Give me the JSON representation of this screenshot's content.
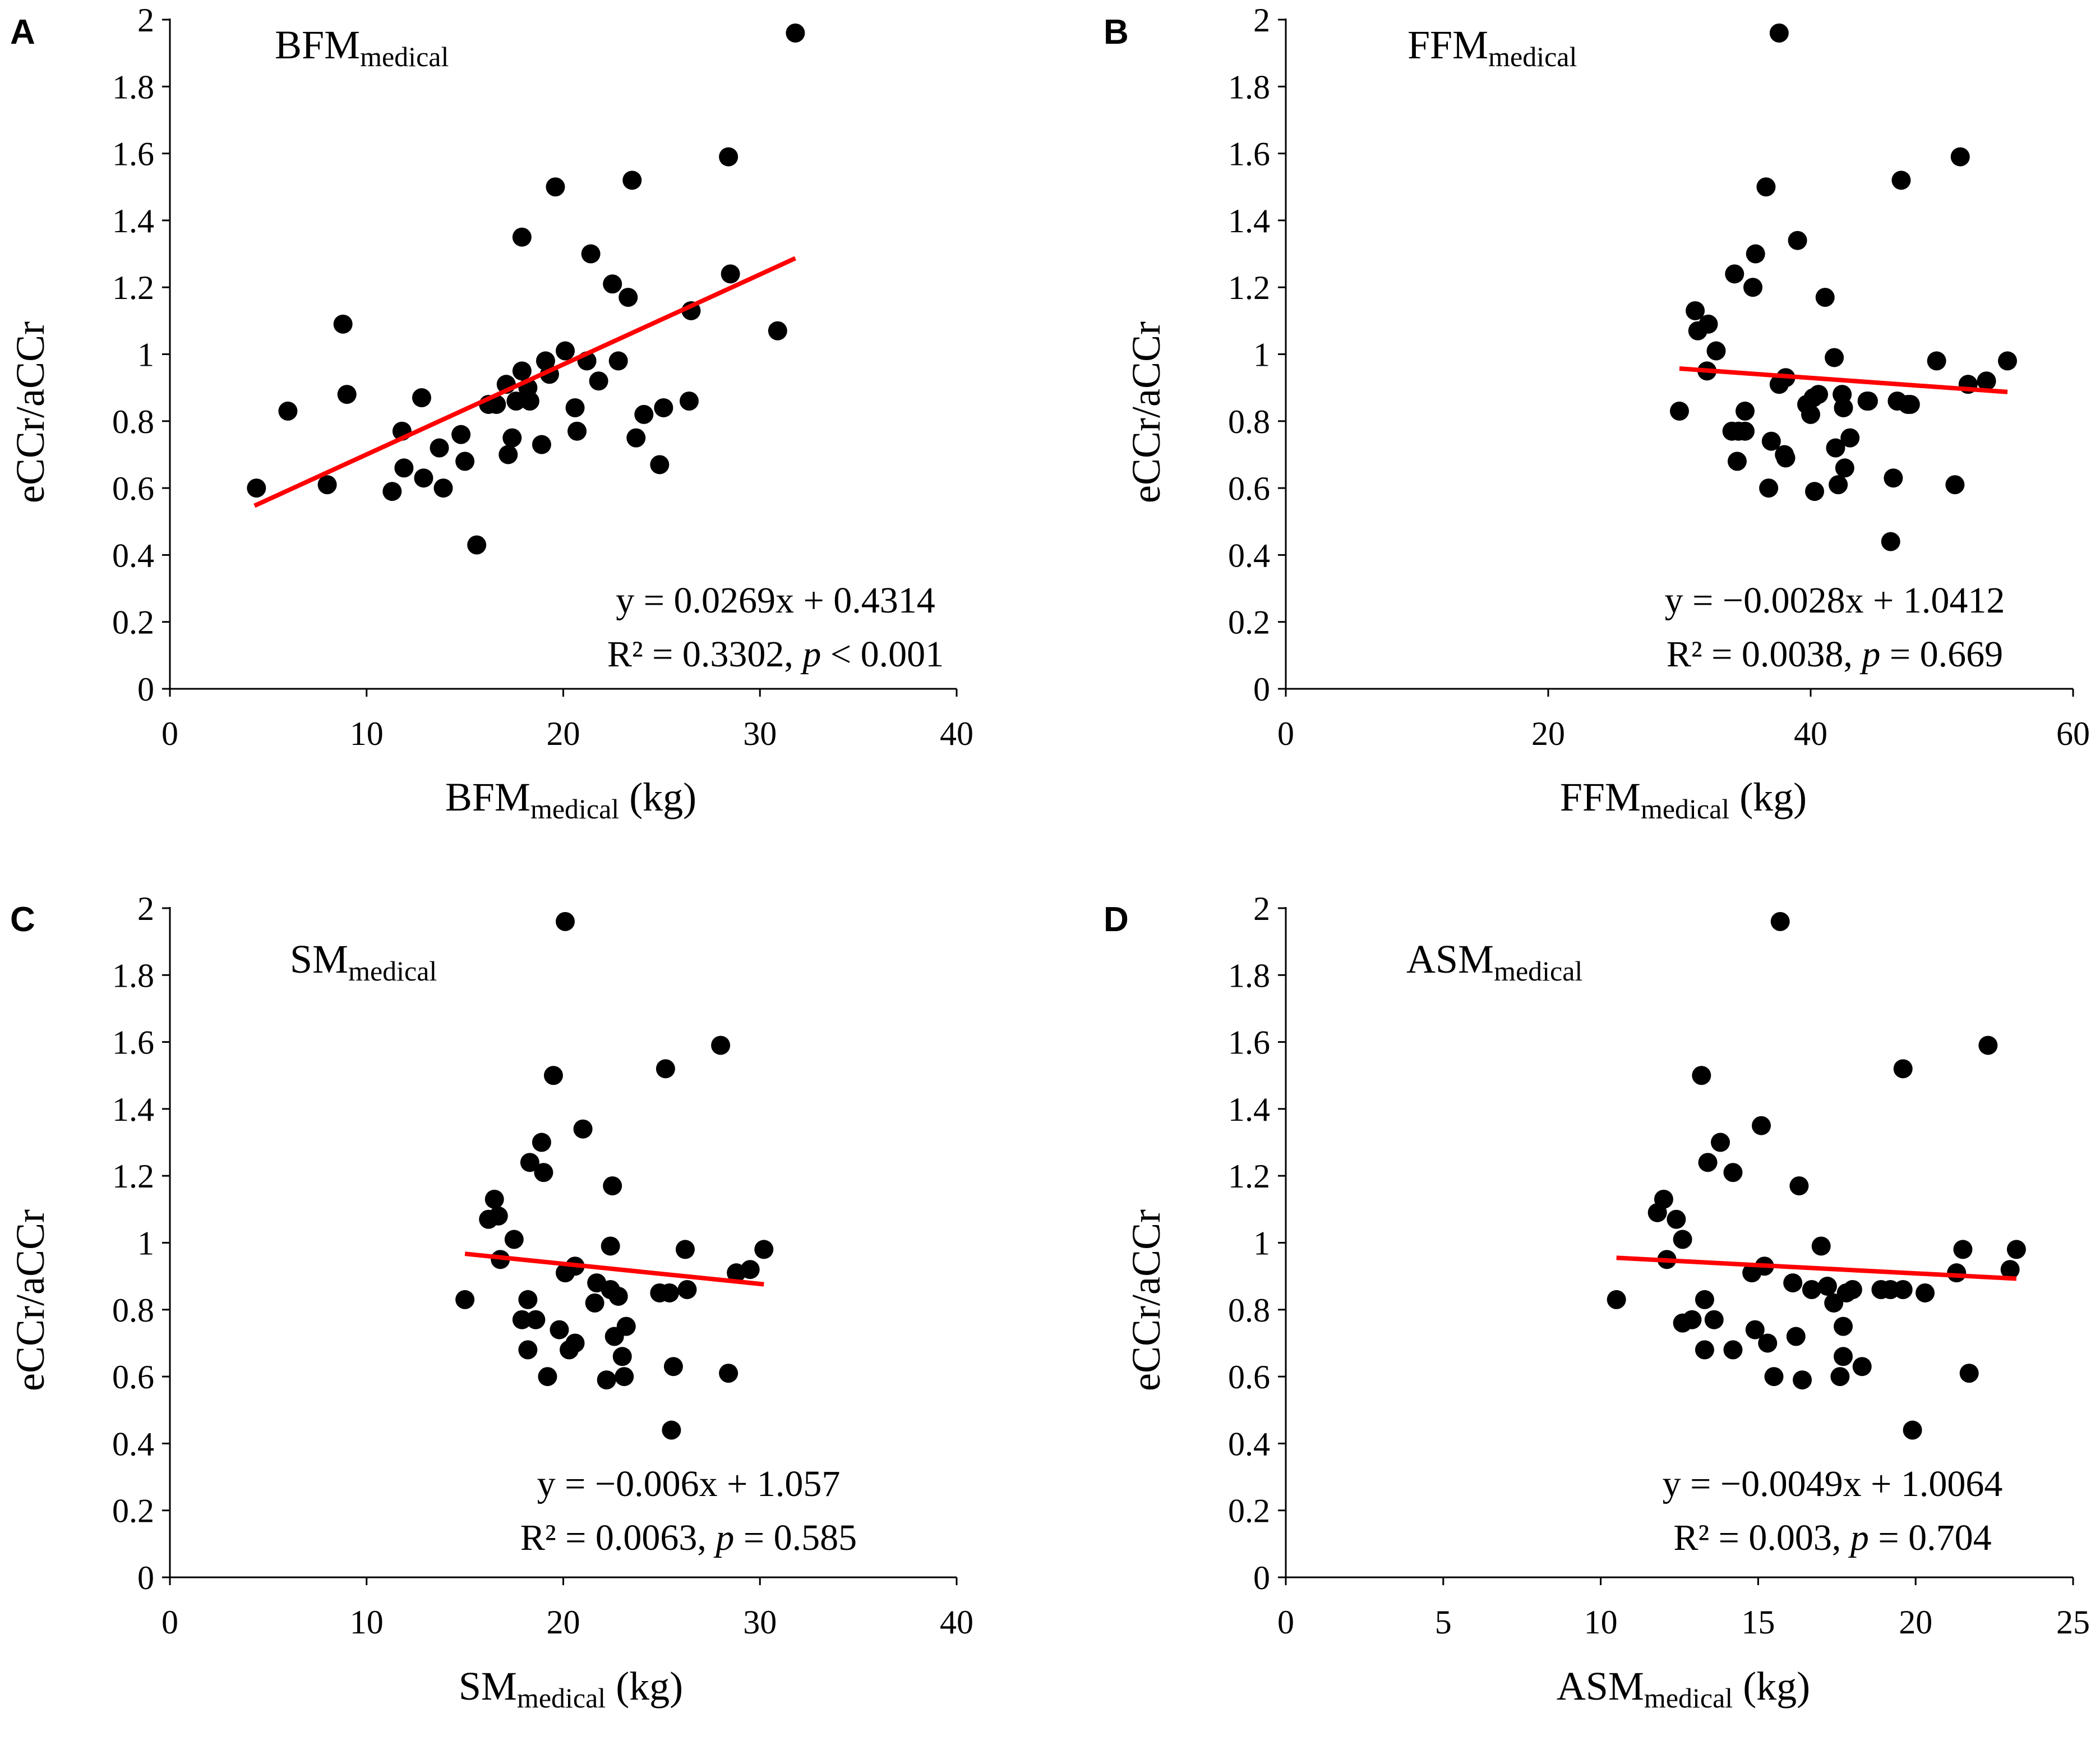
{
  "colors": {
    "points": "#000000",
    "trendline": "#ff0000",
    "axes": "#000000",
    "background": "#ffffff"
  },
  "chart_data": [
    {
      "type": "scatter",
      "panel": "A",
      "inset_title": {
        "main": "BFM",
        "sub": "medical"
      },
      "xlabel": {
        "main": "BFM",
        "sub": "medical",
        "unit": " (kg)"
      },
      "ylabel": "eCCr/aCCr",
      "xlim": [
        0,
        40
      ],
      "ylim": [
        0,
        2
      ],
      "x_ticks": [
        "0",
        "10",
        "20",
        "30",
        "40"
      ],
      "y_ticks": [
        "0",
        "0.2",
        "0.4",
        "0.6",
        "0.8",
        "1",
        "1.2",
        "1.4",
        "1.6",
        "1.8",
        "2"
      ],
      "equation": "y = 0.0269x + 0.4314",
      "stats": {
        "r2": "R² = 0.3302, ",
        "p_symbol": "p",
        "p_rest": " < 0.001"
      },
      "trendline": {
        "slope": 0.0269,
        "intercept": 0.4314,
        "x_range": [
          4.3,
          31.8
        ]
      },
      "points": [
        [
          4.4,
          0.6
        ],
        [
          6,
          0.83
        ],
        [
          8,
          0.61
        ],
        [
          8.8,
          1.09
        ],
        [
          9,
          0.88
        ],
        [
          11.3,
          0.59
        ],
        [
          11.8,
          0.77
        ],
        [
          11.9,
          0.66
        ],
        [
          12.8,
          0.87
        ],
        [
          12.9,
          0.63
        ],
        [
          13.7,
          0.72
        ],
        [
          13.9,
          0.6
        ],
        [
          14.8,
          0.76
        ],
        [
          15,
          0.68
        ],
        [
          15.6,
          0.43
        ],
        [
          16.2,
          0.85
        ],
        [
          16.6,
          0.85
        ],
        [
          17.1,
          0.91
        ],
        [
          17.2,
          0.7
        ],
        [
          17.4,
          0.75
        ],
        [
          17.6,
          0.86
        ],
        [
          17.9,
          1.35
        ],
        [
          17.9,
          0.95
        ],
        [
          18.2,
          0.9
        ],
        [
          18.3,
          0.86
        ],
        [
          18.9,
          0.73
        ],
        [
          19.1,
          0.98
        ],
        [
          19.3,
          0.94
        ],
        [
          19.6,
          1.5
        ],
        [
          20.1,
          1.01
        ],
        [
          20.6,
          0.84
        ],
        [
          20.7,
          0.77
        ],
        [
          21.2,
          0.98
        ],
        [
          21.4,
          1.3
        ],
        [
          21.8,
          0.92
        ],
        [
          22.5,
          1.21
        ],
        [
          22.8,
          0.98
        ],
        [
          23.3,
          1.17
        ],
        [
          23.5,
          1.52
        ],
        [
          23.7,
          0.75
        ],
        [
          24.1,
          0.82
        ],
        [
          24.9,
          0.67
        ],
        [
          25.1,
          0.84
        ],
        [
          26.4,
          0.86
        ],
        [
          26.5,
          1.13
        ],
        [
          28.4,
          1.59
        ],
        [
          28.5,
          1.24
        ],
        [
          30.9,
          1.07
        ],
        [
          31.8,
          1.96
        ]
      ]
    },
    {
      "type": "scatter",
      "panel": "B",
      "inset_title": {
        "main": "FFM",
        "sub": "medical"
      },
      "xlabel": {
        "main": "FFM",
        "sub": "medical",
        "unit": " (kg)"
      },
      "ylabel": "eCCr/aCCr",
      "xlim": [
        0,
        60
      ],
      "ylim": [
        0,
        2
      ],
      "x_ticks": [
        "0",
        "20",
        "40",
        "60"
      ],
      "y_ticks": [
        "0",
        "0.2",
        "0.4",
        "0.6",
        "0.8",
        "1",
        "1.2",
        "1.4",
        "1.6",
        "1.8",
        "2"
      ],
      "equation": "y = −0.0028x + 1.0412",
      "stats": {
        "r2": "R² = 0.0038, ",
        "p_symbol": "p",
        "p_rest": " = 0.669"
      },
      "trendline": {
        "slope": -0.0028,
        "intercept": 1.0412,
        "x_range": [
          30,
          55
        ]
      },
      "points": [
        [
          30,
          0.83
        ],
        [
          31.2,
          1.13
        ],
        [
          31.4,
          1.07
        ],
        [
          32.2,
          1.09
        ],
        [
          32.1,
          0.95
        ],
        [
          32.8,
          1.01
        ],
        [
          34,
          0.77
        ],
        [
          34.2,
          1.24
        ],
        [
          34.4,
          0.68
        ],
        [
          34.5,
          0.77
        ],
        [
          35,
          0.83
        ],
        [
          35,
          0.77
        ],
        [
          35.6,
          1.2
        ],
        [
          35.8,
          1.3
        ],
        [
          36.6,
          1.5
        ],
        [
          36.8,
          0.6
        ],
        [
          37,
          0.74
        ],
        [
          37.6,
          0.91
        ],
        [
          37.6,
          1.96
        ],
        [
          38,
          0.7
        ],
        [
          38.1,
          0.93
        ],
        [
          38.1,
          0.69
        ],
        [
          39,
          1.34
        ],
        [
          39.7,
          0.85
        ],
        [
          40,
          0.82
        ],
        [
          40.2,
          0.87
        ],
        [
          40.3,
          0.59
        ],
        [
          40.6,
          0.88
        ],
        [
          41.1,
          1.17
        ],
        [
          41.8,
          0.99
        ],
        [
          41.9,
          0.72
        ],
        [
          42.1,
          0.61
        ],
        [
          42.4,
          0.88
        ],
        [
          42.5,
          0.84
        ],
        [
          42.6,
          0.66
        ],
        [
          43,
          0.75
        ],
        [
          44.3,
          0.86
        ],
        [
          44.4,
          0.86
        ],
        [
          46.1,
          0.44
        ],
        [
          46.3,
          0.63
        ],
        [
          46.6,
          0.86
        ],
        [
          46.9,
          1.52
        ],
        [
          47.4,
          0.85
        ],
        [
          47.6,
          0.85
        ],
        [
          49.6,
          0.98
        ],
        [
          51,
          0.61
        ],
        [
          51.4,
          1.59
        ],
        [
          52,
          0.91
        ],
        [
          53.4,
          0.92
        ],
        [
          55,
          0.98
        ]
      ]
    },
    {
      "type": "scatter",
      "panel": "C",
      "inset_title": {
        "main": "SM",
        "sub": "medical"
      },
      "xlabel": {
        "main": "SM",
        "sub": "medical",
        "unit": " (kg)"
      },
      "ylabel": "eCCr/aCCr",
      "xlim": [
        0,
        40
      ],
      "ylim": [
        0,
        2
      ],
      "x_ticks": [
        "0",
        "10",
        "20",
        "30",
        "40"
      ],
      "y_ticks": [
        "0",
        "0.2",
        "0.4",
        "0.6",
        "0.8",
        "1",
        "1.2",
        "1.4",
        "1.6",
        "1.8",
        "2"
      ],
      "equation": "y = −0.006x + 1.057",
      "stats": {
        "r2": "R² = 0.0063, ",
        "p_symbol": "p",
        "p_rest": " = 0.585"
      },
      "trendline": {
        "slope": -0.006,
        "intercept": 1.057,
        "x_range": [
          15,
          30.2
        ]
      },
      "points": [
        [
          15,
          0.83
        ],
        [
          16.2,
          1.07
        ],
        [
          16.5,
          1.13
        ],
        [
          16.7,
          1.08
        ],
        [
          16.8,
          0.95
        ],
        [
          17.5,
          1.01
        ],
        [
          17.9,
          0.77
        ],
        [
          18.2,
          0.68
        ],
        [
          18.2,
          0.83
        ],
        [
          18.3,
          1.24
        ],
        [
          18.6,
          0.77
        ],
        [
          18.9,
          1.3
        ],
        [
          19,
          1.21
        ],
        [
          19.2,
          0.6
        ],
        [
          19.5,
          1.5
        ],
        [
          19.8,
          0.74
        ],
        [
          20.1,
          0.91
        ],
        [
          20.1,
          1.96
        ],
        [
          20.3,
          0.68
        ],
        [
          20.6,
          0.7
        ],
        [
          20.6,
          0.93
        ],
        [
          21,
          1.34
        ],
        [
          21.6,
          0.82
        ],
        [
          21.7,
          0.88
        ],
        [
          22.2,
          0.59
        ],
        [
          22.4,
          0.86
        ],
        [
          22.5,
          1.17
        ],
        [
          22.6,
          0.72
        ],
        [
          22.8,
          0.84
        ],
        [
          23,
          0.66
        ],
        [
          23.1,
          0.6
        ],
        [
          23.2,
          0.75
        ],
        [
          24.9,
          0.85
        ],
        [
          25.2,
          1.52
        ],
        [
          25.4,
          0.85
        ],
        [
          25.6,
          0.63
        ],
        [
          25.5,
          0.44
        ],
        [
          26.2,
          0.98
        ],
        [
          26.3,
          0.86
        ],
        [
          28,
          1.59
        ],
        [
          28.4,
          0.61
        ],
        [
          28.8,
          0.91
        ],
        [
          29.5,
          0.92
        ],
        [
          30.2,
          0.98
        ],
        [
          22.4,
          0.99
        ]
      ]
    },
    {
      "type": "scatter",
      "panel": "D",
      "inset_title": {
        "main": "ASM",
        "sub": "medical"
      },
      "xlabel": {
        "main": "ASM",
        "sub": "medical",
        "unit": " (kg)"
      },
      "ylabel": "eCCr/aCCr",
      "xlim": [
        0,
        25
      ],
      "ylim": [
        0,
        2
      ],
      "x_ticks": [
        "0",
        "5",
        "10",
        "15",
        "20",
        "25"
      ],
      "y_ticks": [
        "0",
        "0.2",
        "0.4",
        "0.6",
        "0.8",
        "1",
        "1.2",
        "1.4",
        "1.6",
        "1.8",
        "2"
      ],
      "equation": "y = −0.0049x + 1.0064",
      "stats": {
        "r2": "R² = 0.003, ",
        "p_symbol": "p",
        "p_rest": " = 0.704"
      },
      "trendline": {
        "slope": -0.0049,
        "intercept": 1.0064,
        "x_range": [
          10.5,
          23.2
        ]
      },
      "points": [
        [
          10.5,
          0.83
        ],
        [
          11.8,
          1.09
        ],
        [
          12,
          1.13
        ],
        [
          12.1,
          0.95
        ],
        [
          12.4,
          1.07
        ],
        [
          12.6,
          1.01
        ],
        [
          12.6,
          0.76
        ],
        [
          12.9,
          0.77
        ],
        [
          13.2,
          1.5
        ],
        [
          13.3,
          0.68
        ],
        [
          13.3,
          0.83
        ],
        [
          13.4,
          1.24
        ],
        [
          13.6,
          0.77
        ],
        [
          13.8,
          1.3
        ],
        [
          14.2,
          1.21
        ],
        [
          14.2,
          0.68
        ],
        [
          14.8,
          0.91
        ],
        [
          14.9,
          0.74
        ],
        [
          15.1,
          1.35
        ],
        [
          15.2,
          0.93
        ],
        [
          15.3,
          0.7
        ],
        [
          15.5,
          0.6
        ],
        [
          15.7,
          1.96
        ],
        [
          16.1,
          0.88
        ],
        [
          16.2,
          0.72
        ],
        [
          16.3,
          1.17
        ],
        [
          16.4,
          0.59
        ],
        [
          16.7,
          0.86
        ],
        [
          17,
          0.99
        ],
        [
          17.2,
          0.87
        ],
        [
          17.4,
          0.82
        ],
        [
          17.6,
          0.6
        ],
        [
          17.7,
          0.66
        ],
        [
          17.7,
          0.75
        ],
        [
          17.8,
          0.85
        ],
        [
          18,
          0.86
        ],
        [
          18.3,
          0.63
        ],
        [
          18.9,
          0.86
        ],
        [
          19.2,
          0.86
        ],
        [
          19.6,
          1.52
        ],
        [
          19.6,
          0.86
        ],
        [
          19.9,
          0.44
        ],
        [
          20.3,
          0.85
        ],
        [
          21.3,
          0.91
        ],
        [
          21.5,
          0.98
        ],
        [
          21.7,
          0.61
        ],
        [
          22.3,
          1.59
        ],
        [
          23,
          0.92
        ],
        [
          23.2,
          0.98
        ]
      ]
    }
  ]
}
